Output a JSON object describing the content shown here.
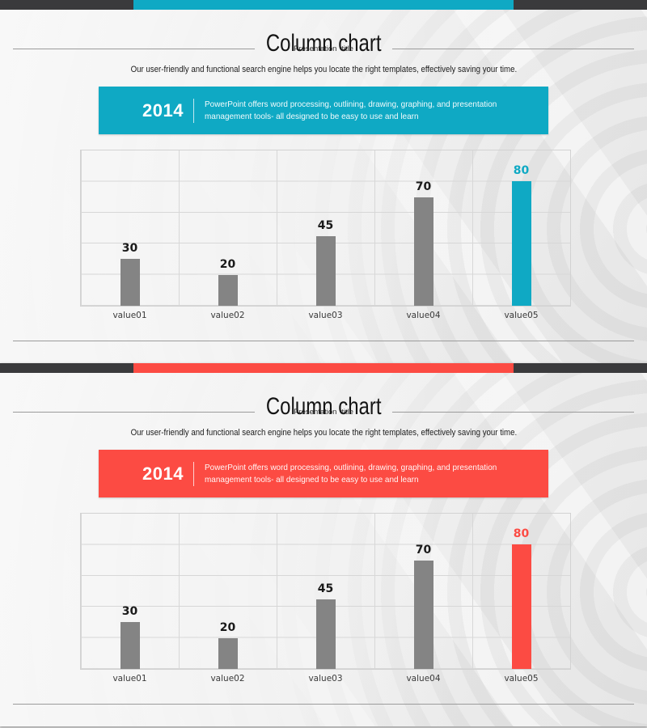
{
  "page": {
    "background_color": "#d9d9d9"
  },
  "slides": [
    {
      "title": "Column chart",
      "subtitle": "Presentation title",
      "description": "Our user-friendly and functional search engine helps you locate the right templates, effectively saving your time.",
      "banner": {
        "year": "2014",
        "text": "PowerPoint offers word processing, outlining, drawing, graphing, and presentation management tools- all designed to be easy to use and learn"
      },
      "accent_color": "#0fa9c4",
      "dark_bar_color": "#3a3a3c"
    },
    {
      "title": "Column chart",
      "subtitle": "Presentation title",
      "description": "Our user-friendly and functional search engine helps you locate the right templates, effectively saving your time.",
      "banner": {
        "year": "2014",
        "text": "PowerPoint offers word processing, outlining, drawing, graphing, and presentation management tools- all designed to be easy to use and learn"
      },
      "accent_color": "#fc4b43",
      "dark_bar_color": "#3a3a3c"
    }
  ],
  "chart_data": [
    {
      "type": "bar",
      "title": "Column chart",
      "categories": [
        "value01",
        "value02",
        "value03",
        "value04",
        "value05"
      ],
      "values": [
        30,
        20,
        45,
        70,
        80
      ],
      "bar_colors": [
        "#848484",
        "#848484",
        "#848484",
        "#848484",
        "#0fa9c4"
      ],
      "value_label_colors": [
        "#1a1a1a",
        "#1a1a1a",
        "#1a1a1a",
        "#1a1a1a",
        "#0fa9c4"
      ],
      "highlight_index": 4,
      "xlabel": "",
      "ylabel": "",
      "ylim": [
        0,
        100
      ],
      "grid_step": 20,
      "grid": true,
      "legend": false
    },
    {
      "type": "bar",
      "title": "Column chart",
      "categories": [
        "value01",
        "value02",
        "value03",
        "value04",
        "value05"
      ],
      "values": [
        30,
        20,
        45,
        70,
        80
      ],
      "bar_colors": [
        "#848484",
        "#848484",
        "#848484",
        "#848484",
        "#fc4b43"
      ],
      "value_label_colors": [
        "#1a1a1a",
        "#1a1a1a",
        "#1a1a1a",
        "#1a1a1a",
        "#fc4b43"
      ],
      "highlight_index": 4,
      "xlabel": "",
      "ylabel": "",
      "ylim": [
        0,
        100
      ],
      "grid_step": 20,
      "grid": true,
      "legend": false
    }
  ]
}
